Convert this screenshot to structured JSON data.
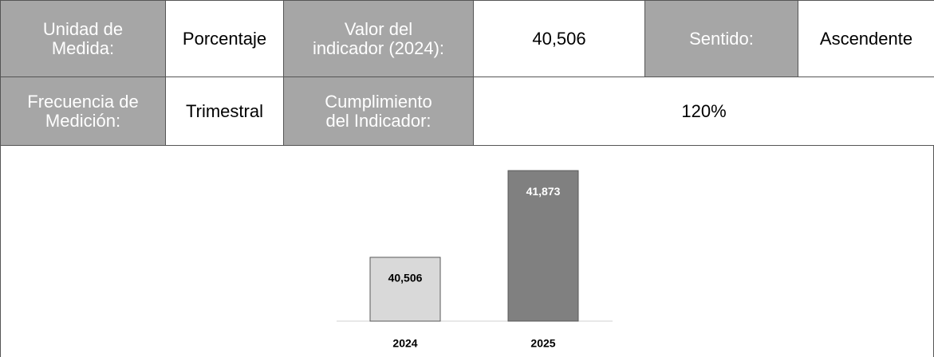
{
  "table": {
    "rows": [
      [
        "Unidad de\nMedida:",
        "Porcentaje",
        "Valor del\nindicador (2024):",
        "40,506",
        "Sentido:",
        "Ascendente"
      ],
      [
        "Frecuencia de\nMedición:",
        "Trimestral",
        "Cumplimiento\ndel Indicador:",
        "120%"
      ]
    ]
  },
  "chart_data": {
    "type": "bar",
    "categories": [
      "2024",
      "2025"
    ],
    "values": [
      40.506,
      41.873
    ],
    "value_labels": [
      "40,506",
      "41,873"
    ],
    "colors": [
      "#d9d9d9",
      "#808080"
    ],
    "label_colors": [
      "#000000",
      "#ffffff"
    ],
    "ylim": [
      39.5,
      42.1
    ]
  }
}
